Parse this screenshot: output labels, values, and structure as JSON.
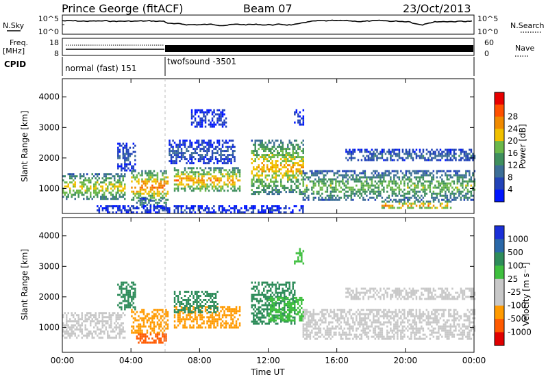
{
  "header": {
    "station": "Prince George (fitACF)",
    "beam": "Beam 07",
    "date": "23/Oct/2013"
  },
  "strip": {
    "nsky_label": "N.Sky",
    "nsky_ticks": [
      "10^5",
      "10^0"
    ],
    "nsearch_label": "N.Search",
    "nsearch_ticks": [
      "10^5",
      "10^0"
    ],
    "freq_label": "Freq.",
    "freq_unit": "[MHz]",
    "freq_ticks": [
      "18",
      "8"
    ],
    "nave_label": "Nave",
    "nave_ticks": [
      "60",
      "0"
    ],
    "cpid_label": "CPID",
    "programs": [
      {
        "name": "normal (fast) 151",
        "start_hour": 0,
        "end_hour": 6
      },
      {
        "name": "twofsound -3501",
        "start_hour": 6,
        "end_hour": 24
      }
    ]
  },
  "chart_data": [
    {
      "type": "heatmap",
      "panel": "power",
      "ylabel": "Slant Range [km]",
      "yticks": [
        1000,
        2000,
        3000,
        4000
      ],
      "ylim": [
        180,
        4600
      ],
      "xlim": [
        0,
        24
      ],
      "colorbar": {
        "label": "Power [dB]",
        "ticks": [
          "4",
          "8",
          "12",
          "16",
          "20",
          "24",
          "28"
        ],
        "colors": [
          "#0016ff",
          "#2243b8",
          "#3c6e96",
          "#3f8f5e",
          "#6bb84a",
          "#f0c000",
          "#f08a00",
          "#ff5000",
          "#e80000"
        ]
      },
      "regions": [
        {
          "start_hour": 0.0,
          "end_hour": 3.6,
          "range_lo": 650,
          "range_hi": 1500,
          "value": 22
        },
        {
          "start_hour": 3.2,
          "end_hour": 4.2,
          "range_lo": 1600,
          "range_hi": 2500,
          "value": 8
        },
        {
          "start_hour": 4.0,
          "end_hour": 6.1,
          "range_lo": 600,
          "range_hi": 1600,
          "value": 28
        },
        {
          "start_hour": 4.3,
          "end_hour": 6.0,
          "range_lo": 400,
          "range_hi": 700,
          "value": 14
        },
        {
          "start_hour": 6.5,
          "end_hour": 10.3,
          "range_lo": 900,
          "range_hi": 1700,
          "value": 26
        },
        {
          "start_hour": 6.2,
          "end_hour": 10.0,
          "range_lo": 1800,
          "range_hi": 2600,
          "value": 8
        },
        {
          "start_hour": 7.5,
          "end_hour": 9.5,
          "range_lo": 3000,
          "range_hi": 3600,
          "value": 6
        },
        {
          "start_hour": 11.0,
          "end_hour": 14.0,
          "range_lo": 800,
          "range_hi": 2600,
          "value": 24
        },
        {
          "start_hour": 13.5,
          "end_hour": 14.0,
          "range_lo": 3100,
          "range_hi": 3600,
          "value": 6
        },
        {
          "start_hour": 14.0,
          "end_hour": 24.0,
          "range_lo": 600,
          "range_hi": 1600,
          "value": 18
        },
        {
          "start_hour": 18.6,
          "end_hour": 22.6,
          "range_lo": 350,
          "range_hi": 600,
          "value": 28
        },
        {
          "start_hour": 16.5,
          "end_hour": 24.0,
          "range_lo": 1900,
          "range_hi": 2300,
          "value": 10
        },
        {
          "start_hour": 2.0,
          "end_hour": 14.0,
          "range_lo": 200,
          "range_hi": 450,
          "value": 6
        }
      ]
    },
    {
      "type": "heatmap",
      "panel": "velocity",
      "ylabel": "Slant Range [km]",
      "yticks": [
        1000,
        2000,
        3000,
        4000
      ],
      "ylim": [
        180,
        4600
      ],
      "xlim": [
        0,
        24
      ],
      "xlabel": "Time UT",
      "xticks": [
        "00:00",
        "04:00",
        "08:00",
        "12:00",
        "16:00",
        "20:00",
        "00:00"
      ],
      "colorbar": {
        "label": "Velocity [m s⁻¹]",
        "ticks": [
          "1000",
          "500",
          "100",
          "25",
          "-25",
          "-100",
          "-500",
          "-1000"
        ],
        "colors": [
          "#1a2fd8",
          "#2a68a8",
          "#2e8c5a",
          "#3fbf3f",
          "#c8c8c8",
          "#c8c8c8",
          "#ff9a00",
          "#ff5a00",
          "#e00000"
        ]
      },
      "regions": [
        {
          "start_hour": 0.0,
          "end_hour": 3.6,
          "range_lo": 650,
          "range_hi": 1500,
          "value": 0
        },
        {
          "start_hour": 3.2,
          "end_hour": 4.2,
          "range_lo": 1600,
          "range_hi": 2500,
          "value": 150
        },
        {
          "start_hour": 4.0,
          "end_hour": 6.1,
          "range_lo": 800,
          "range_hi": 1600,
          "value": -300
        },
        {
          "start_hour": 4.3,
          "end_hour": 6.0,
          "range_lo": 500,
          "range_hi": 800,
          "value": -700
        },
        {
          "start_hour": 6.5,
          "end_hour": 10.3,
          "range_lo": 1000,
          "range_hi": 1700,
          "value": -400
        },
        {
          "start_hour": 6.5,
          "end_hour": 9.0,
          "range_lo": 1500,
          "range_hi": 2200,
          "value": 300
        },
        {
          "start_hour": 11.0,
          "end_hour": 13.5,
          "range_lo": 1100,
          "range_hi": 2500,
          "value": 200
        },
        {
          "start_hour": 12.0,
          "end_hour": 14.0,
          "range_lo": 1200,
          "range_hi": 2000,
          "value": 60
        },
        {
          "start_hour": 13.5,
          "end_hour": 14.0,
          "range_lo": 3100,
          "range_hi": 3600,
          "value": 80
        },
        {
          "start_hour": 14.0,
          "end_hour": 24.0,
          "range_lo": 600,
          "range_hi": 1600,
          "value": 0
        },
        {
          "start_hour": 16.5,
          "end_hour": 24.0,
          "range_lo": 1900,
          "range_hi": 2300,
          "value": 0
        }
      ]
    }
  ]
}
